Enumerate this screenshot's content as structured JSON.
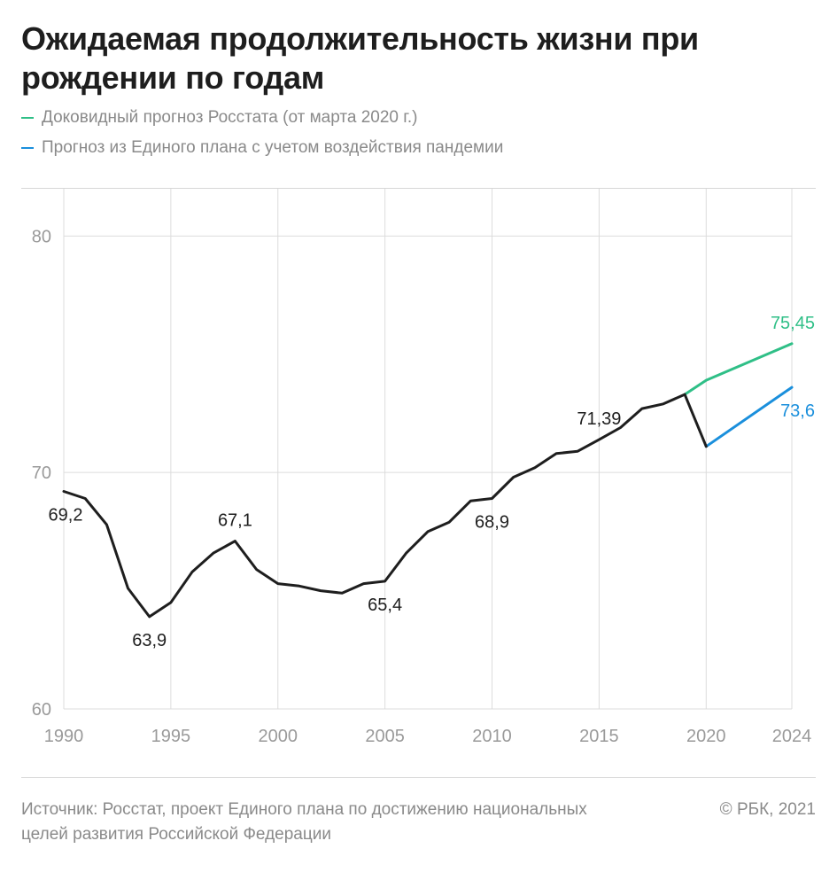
{
  "title": "Ожидаемая продолжительность жизни при рождении по годам",
  "legend": [
    {
      "label": "Доковидный прогноз Росстата (от марта 2020 г.)",
      "color": "#2fbf87"
    },
    {
      "label": "Прогноз из Единого плана с учетом воздействия пандемии",
      "color": "#1a8fdc"
    }
  ],
  "footer": {
    "source": "Источник: Росстат, проект Единого плана по достижению национальных целей развития Российской Федерации",
    "copyright": "© РБК, 2021"
  },
  "chart_data": {
    "type": "line",
    "xlim": [
      1990,
      2024
    ],
    "ylim": [
      60,
      82
    ],
    "x_ticks": [
      "1990",
      "1995",
      "2000",
      "2005",
      "2010",
      "2015",
      "2020",
      "2024"
    ],
    "y_ticks": [
      "60",
      "70",
      "80"
    ],
    "grid": true,
    "series": [
      {
        "color": "#1e1e1e",
        "points": [
          [
            1990,
            69.2
          ],
          [
            1991,
            68.9
          ],
          [
            1992,
            67.8
          ],
          [
            1993,
            65.1
          ],
          [
            1994,
            63.9
          ],
          [
            1995,
            64.5
          ],
          [
            1996,
            65.8
          ],
          [
            1997,
            66.6
          ],
          [
            1998,
            67.1
          ],
          [
            1999,
            65.9
          ],
          [
            2000,
            65.3
          ],
          [
            2001,
            65.2
          ],
          [
            2002,
            65.0
          ],
          [
            2003,
            64.9
          ],
          [
            2004,
            65.3
          ],
          [
            2005,
            65.4
          ],
          [
            2006,
            66.6
          ],
          [
            2007,
            67.5
          ],
          [
            2008,
            67.9
          ],
          [
            2009,
            68.8
          ],
          [
            2010,
            68.9
          ],
          [
            2011,
            69.8
          ],
          [
            2012,
            70.2
          ],
          [
            2013,
            70.8
          ],
          [
            2014,
            70.9
          ],
          [
            2015,
            71.39
          ],
          [
            2016,
            71.9
          ],
          [
            2017,
            72.7
          ],
          [
            2018,
            72.9
          ],
          [
            2019,
            73.3
          ],
          [
            2020,
            71.1
          ]
        ]
      },
      {
        "name": "Доковидный прогноз Росстата (от марта 2020 г.)",
        "color": "#2fbf87",
        "points": [
          [
            2019,
            73.3
          ],
          [
            2020,
            73.9
          ],
          [
            2024,
            75.45
          ]
        ]
      },
      {
        "name": "Прогноз из Единого плана с учетом воздействия пандемии",
        "color": "#1a8fdc",
        "points": [
          [
            2020,
            71.1
          ],
          [
            2024,
            73.6
          ]
        ]
      }
    ],
    "annotations": [
      {
        "text": "69,2",
        "x": 1990,
        "y": 69.2,
        "anchor": "below",
        "color": "#1e1e1e"
      },
      {
        "text": "63,9",
        "x": 1994,
        "y": 63.9,
        "anchor": "below",
        "color": "#1e1e1e"
      },
      {
        "text": "67,1",
        "x": 1998,
        "y": 67.1,
        "anchor": "above",
        "color": "#1e1e1e"
      },
      {
        "text": "65,4",
        "x": 2005,
        "y": 65.4,
        "anchor": "below",
        "color": "#1e1e1e"
      },
      {
        "text": "68,9",
        "x": 2010,
        "y": 68.9,
        "anchor": "below",
        "color": "#1e1e1e"
      },
      {
        "text": "71,39",
        "x": 2015,
        "y": 71.39,
        "anchor": "above",
        "color": "#1e1e1e"
      },
      {
        "text": "75,45",
        "x": 2024,
        "y": 75.45,
        "anchor": "above",
        "color": "#2fbf87"
      },
      {
        "text": "73,6",
        "x": 2024,
        "y": 73.6,
        "anchor": "below",
        "color": "#1a8fdc"
      }
    ]
  }
}
